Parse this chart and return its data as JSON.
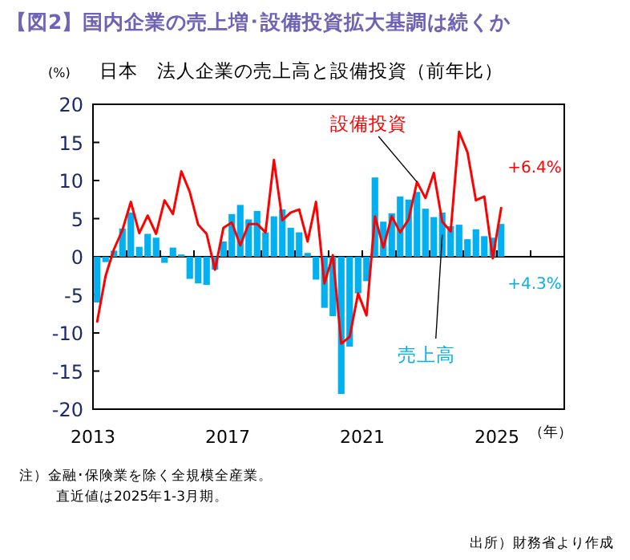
{
  "chart_data": {
    "type": "bar",
    "title": "【図2】国内企業の売上増･設備投資拡大基調は続くか",
    "subtitle": "日本　法人企業の売上高と設備投資（前年比）",
    "ylabel": "(%)",
    "xlabel": "（年）",
    "annotations": [
      "注）金融･保険業を除く全規模全産業。",
      "直近値は2025年1-3月期。",
      "出所）財務省より作成",
      "+4.3%"
    ],
    "x": [
      2013.125,
      2013.375,
      2013.625,
      2013.875,
      2014.125,
      2014.375,
      2014.625,
      2014.875,
      2015.125,
      2015.375,
      2015.625,
      2015.875,
      2016.125,
      2016.375,
      2016.625,
      2016.875,
      2017.125,
      2017.375,
      2017.625,
      2017.875,
      2018.125,
      2018.375,
      2018.625,
      2018.875,
      2019.125,
      2019.375,
      2019.625,
      2019.875,
      2020.125,
      2020.375,
      2020.625,
      2020.875,
      2021.125,
      2021.375,
      2021.625,
      2021.875,
      2022.125,
      2022.375,
      2022.625,
      2022.875,
      2023.125,
      2023.375,
      2023.625,
      2023.875,
      2024.125,
      2024.375,
      2024.625,
      2024.875,
      2025.125
    ],
    "series": [
      {
        "name": "売上高",
        "color": "#00b0f0",
        "values": [
          -6.0,
          -0.7,
          0.8,
          3.7,
          5.8,
          1.3,
          3.0,
          2.5,
          -0.8,
          1.2,
          0.3,
          -2.9,
          -3.5,
          -3.7,
          -1.7,
          2.0,
          5.6,
          6.8,
          4.9,
          6.0,
          3.2,
          5.3,
          6.2,
          3.8,
          3.2,
          0.5,
          -3.0,
          -6.7,
          -7.8,
          -18.0,
          -11.8,
          -4.8,
          -3.2,
          10.4,
          4.6,
          5.7,
          7.9,
          7.5,
          8.5,
          6.3,
          5.2,
          5.8,
          4.0,
          4.2,
          2.3,
          3.6,
          2.7,
          2.5,
          4.3
        ]
      },
      {
        "name": "設備投資",
        "type": "line",
        "color": "#ff0000",
        "values": [
          -8.5,
          -2.5,
          1.0,
          3.5,
          7.2,
          3.1,
          5.4,
          3.0,
          7.4,
          5.6,
          11.2,
          8.5,
          4.2,
          3.0,
          -1.7,
          3.8,
          4.5,
          1.5,
          4.3,
          4.3,
          3.2,
          12.7,
          4.8,
          5.8,
          6.2,
          2.0,
          7.2,
          -3.5,
          0.2,
          -11.4,
          -10.5,
          -4.8,
          -7.7,
          5.3,
          1.2,
          5.3,
          3.2,
          4.9,
          9.8,
          7.7,
          11.0,
          4.6,
          3.3,
          16.4,
          13.7,
          7.4,
          7.9,
          -0.2,
          6.4
        ],
        "value_labels": [
          null,
          null,
          null,
          null,
          null,
          null,
          null,
          null,
          null,
          null,
          null,
          null,
          null,
          null,
          null,
          null,
          null,
          null,
          null,
          null,
          null,
          null,
          null,
          null,
          null,
          null,
          null,
          null,
          null,
          null,
          null,
          null,
          null,
          null,
          null,
          null,
          null,
          null,
          null,
          null,
          null,
          null,
          null,
          null,
          null,
          null,
          null,
          null,
          "+6.4%"
        ]
      }
    ],
    "xlim": [
      2013,
      2027
    ],
    "xticks": [
      2013,
      {
        "value": 2014,
        "label": null
      },
      {
        "value": 2015,
        "label": null
      },
      {
        "value": 2016,
        "label": null
      },
      2017,
      {
        "value": 2018,
        "label": null
      },
      {
        "value": 2019,
        "label": null
      },
      {
        "value": 2020,
        "label": null
      },
      2021,
      {
        "value": 2022,
        "label": null
      },
      {
        "value": 2023,
        "label": null
      },
      {
        "value": 2024,
        "label": null
      },
      2025,
      {
        "value": 2026,
        "label": null
      },
      {
        "value": 2027,
        "label": null
      }
    ],
    "ylim": [
      -20,
      20
    ],
    "yticks": [
      -20,
      -15,
      -10,
      -5,
      0,
      5,
      10,
      15,
      20
    ]
  }
}
